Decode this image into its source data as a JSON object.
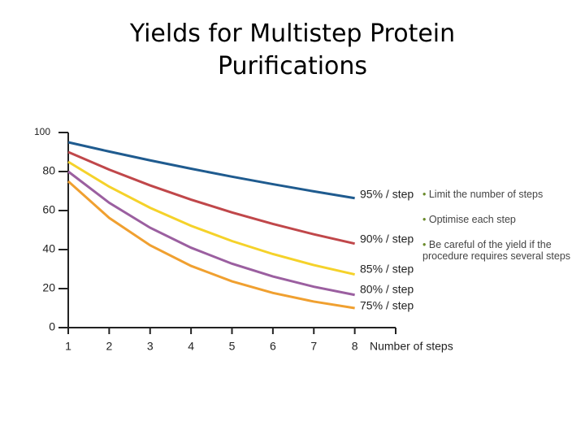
{
  "chart_data": {
    "type": "line",
    "title": "Yields for Multistep Protein Purifications",
    "x_label": "Number of steps",
    "x": [
      1,
      2,
      3,
      4,
      5,
      6,
      7,
      8
    ],
    "xlim": [
      1,
      9
    ],
    "xticks": [
      1,
      2,
      3,
      4,
      5,
      6,
      7,
      8
    ],
    "ylim": [
      0,
      100
    ],
    "yticks": [
      0,
      20,
      40,
      60,
      80,
      100
    ],
    "series": [
      {
        "name": "95% / step",
        "color": "#1f5b8f",
        "values": [
          95,
          90.25,
          85.74,
          81.45,
          77.38,
          73.51,
          69.83,
          66.34
        ]
      },
      {
        "name": "90% / step",
        "color": "#c0474a",
        "values": [
          90,
          81,
          72.9,
          65.61,
          59.05,
          53.14,
          47.83,
          43.05
        ]
      },
      {
        "name": "85% / step",
        "color": "#f5d22a",
        "values": [
          85,
          72.25,
          61.41,
          52.2,
          44.37,
          37.71,
          32.06,
          27.25
        ]
      },
      {
        "name": "80% / step",
        "color": "#9b5fa0",
        "values": [
          80,
          64,
          51.2,
          40.96,
          32.77,
          26.21,
          20.97,
          16.78
        ]
      },
      {
        "name": "75% / step",
        "color": "#f0a030",
        "values": [
          75,
          56.25,
          42.19,
          31.64,
          23.73,
          17.8,
          13.35,
          10.01
        ]
      }
    ]
  },
  "notes": [
    "Limit the number of steps",
    "Optimise each step",
    "Be careful of the yield if the procedure requires several steps"
  ]
}
